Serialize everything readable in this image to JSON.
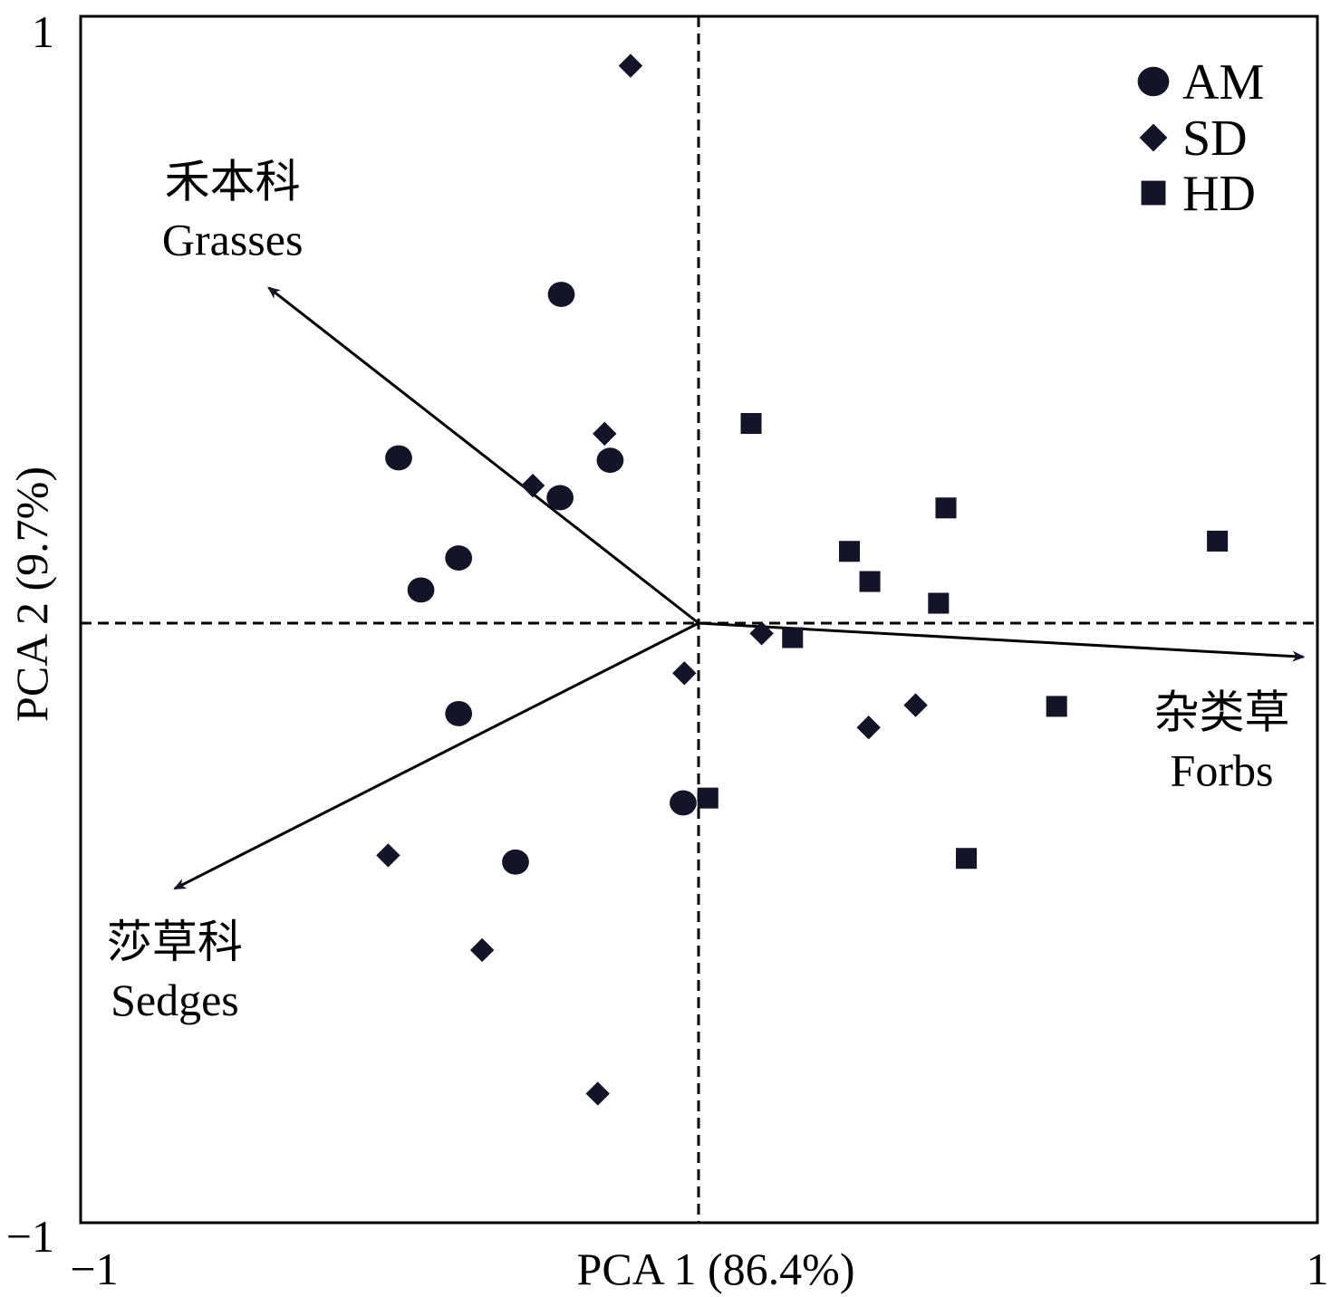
{
  "chart_data": {
    "type": "scatter",
    "title": "",
    "xlabel": "PCA 1 (86.4%)",
    "ylabel": "PCA 2 (9.7%)",
    "xlim": [
      -1,
      1
    ],
    "ylim": [
      -1,
      1
    ],
    "x_ticks": [
      "−1",
      "1"
    ],
    "y_ticks": [
      "1",
      "−1"
    ],
    "grid": false,
    "reference_lines": "dashed lines at x = 0 and y = 0",
    "legend_position": "top-right",
    "marker_color": "#141428",
    "series": [
      {
        "name": "AM",
        "marker": "circle",
        "points": [
          {
            "x": -0.222,
            "y": 0.545
          },
          {
            "x": -0.485,
            "y": 0.274
          },
          {
            "x": -0.143,
            "y": 0.27
          },
          {
            "x": -0.224,
            "y": 0.208
          },
          {
            "x": -0.388,
            "y": 0.108
          },
          {
            "x": -0.449,
            "y": 0.055
          },
          {
            "x": -0.388,
            "y": -0.15
          },
          {
            "x": -0.025,
            "y": -0.298
          },
          {
            "x": -0.296,
            "y": -0.396
          }
        ]
      },
      {
        "name": "SD",
        "marker": "diamond",
        "points": [
          {
            "x": -0.11,
            "y": 0.924
          },
          {
            "x": -0.152,
            "y": 0.314
          },
          {
            "x": -0.268,
            "y": 0.228
          },
          {
            "x": 0.102,
            "y": -0.017
          },
          {
            "x": -0.023,
            "y": -0.083
          },
          {
            "x": 0.351,
            "y": -0.136
          },
          {
            "x": 0.275,
            "y": -0.173
          },
          {
            "x": -0.502,
            "y": -0.385
          },
          {
            "x": -0.35,
            "y": -0.542
          },
          {
            "x": -0.163,
            "y": -0.78
          }
        ]
      },
      {
        "name": "HD",
        "marker": "square",
        "points": [
          {
            "x": 0.085,
            "y": 0.331
          },
          {
            "x": 0.4,
            "y": 0.191
          },
          {
            "x": 0.839,
            "y": 0.136
          },
          {
            "x": 0.244,
            "y": 0.119
          },
          {
            "x": 0.277,
            "y": 0.069
          },
          {
            "x": 0.388,
            "y": 0.033
          },
          {
            "x": 0.152,
            "y": -0.024
          },
          {
            "x": 0.579,
            "y": -0.138
          },
          {
            "x": 0.015,
            "y": -0.29
          },
          {
            "x": 0.433,
            "y": -0.39
          }
        ]
      }
    ],
    "vectors": [
      {
        "name_cn": "禾本科",
        "name_en": "Grasses",
        "x": -0.695,
        "y": 0.556
      },
      {
        "name_cn": "杂类草",
        "name_en": "Forbs",
        "x": 0.978,
        "y": -0.056
      },
      {
        "name_cn": "莎草科",
        "name_en": "Sedges",
        "x": -0.847,
        "y": -0.44
      }
    ]
  }
}
